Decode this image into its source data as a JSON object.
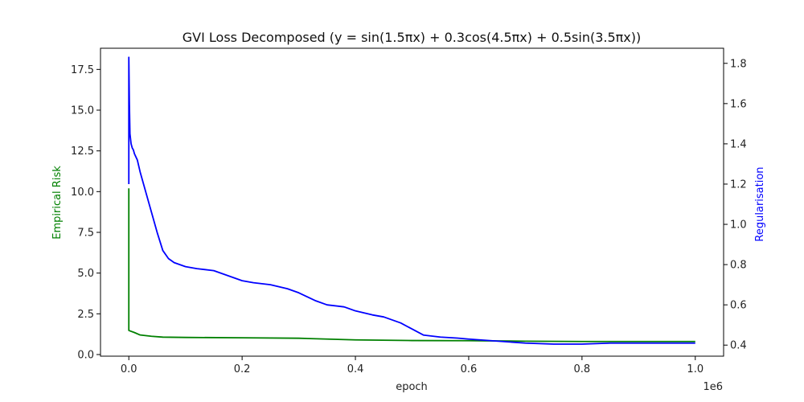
{
  "chart_data": {
    "type": "line",
    "title": "GVI Loss Decomposed ($y=\\sin(1.5\\pi x) + 0.3\\cos(4.5\\pi x) + 0.5\\sin(3.5\\pi x)$)",
    "title_display": "GVI Loss Decomposed (y = sin(1.5πx) + 0.3cos(4.5πx) + 0.5sin(3.5πx))",
    "xlabel": "epoch",
    "x_scale_label": "1e6",
    "xlim": [
      -0.05,
      1.05
    ],
    "x_ticks": [
      0.0,
      0.2,
      0.4,
      0.6,
      0.8,
      1.0
    ],
    "x_tick_labels": [
      "0.0",
      "0.2",
      "0.4",
      "0.6",
      "0.8",
      "1.0"
    ],
    "y_left": {
      "label": "Empirical Risk",
      "color": "#008000",
      "lim": [
        -0.1,
        18.8
      ],
      "ticks": [
        0.0,
        2.5,
        5.0,
        7.5,
        10.0,
        12.5,
        15.0,
        17.5
      ],
      "tick_labels": [
        "0.0",
        "2.5",
        "5.0",
        "7.5",
        "10.0",
        "12.5",
        "15.0",
        "17.5"
      ]
    },
    "y_right": {
      "label": "Regularisation",
      "color": "#0000ff",
      "lim": [
        0.345,
        1.875
      ],
      "ticks": [
        0.4,
        0.6,
        0.8,
        1.0,
        1.2,
        1.4,
        1.6,
        1.8
      ],
      "tick_labels": [
        "0.4",
        "0.6",
        "0.8",
        "1.0",
        "1.2",
        "1.4",
        "1.6",
        "1.8"
      ]
    },
    "grid": false,
    "series": [
      {
        "name": "Empirical Risk",
        "axis": "left",
        "color": "#008000",
        "x": [
          0.0,
          0.0,
          0.002,
          0.01,
          0.02,
          0.04,
          0.06,
          0.1,
          0.2,
          0.3,
          0.4,
          0.5,
          0.6,
          0.7,
          0.8,
          0.9,
          1.0
        ],
        "y": [
          10.2,
          1.48,
          1.45,
          1.35,
          1.2,
          1.12,
          1.07,
          1.05,
          1.03,
          1.0,
          0.9,
          0.86,
          0.85,
          0.82,
          0.8,
          0.8,
          0.8
        ]
      },
      {
        "name": "Regularisation",
        "axis": "right",
        "color": "#0000ff",
        "x": [
          0.0,
          0.0,
          0.001,
          0.002,
          0.004,
          0.006,
          0.008,
          0.01,
          0.015,
          0.02,
          0.03,
          0.04,
          0.05,
          0.06,
          0.07,
          0.08,
          0.1,
          0.12,
          0.15,
          0.18,
          0.2,
          0.22,
          0.25,
          0.28,
          0.3,
          0.33,
          0.35,
          0.38,
          0.4,
          0.43,
          0.45,
          0.48,
          0.5,
          0.52,
          0.55,
          0.58,
          0.6,
          0.65,
          0.7,
          0.75,
          0.8,
          0.85,
          0.9,
          0.95,
          1.0
        ],
        "y": [
          1.2,
          1.83,
          1.6,
          1.45,
          1.4,
          1.38,
          1.37,
          1.35,
          1.32,
          1.26,
          1.16,
          1.06,
          0.96,
          0.87,
          0.83,
          0.81,
          0.79,
          0.78,
          0.77,
          0.74,
          0.72,
          0.71,
          0.7,
          0.68,
          0.66,
          0.62,
          0.6,
          0.59,
          0.57,
          0.55,
          0.54,
          0.51,
          0.48,
          0.45,
          0.44,
          0.435,
          0.43,
          0.42,
          0.41,
          0.405,
          0.405,
          0.41,
          0.41,
          0.41,
          0.41
        ]
      }
    ]
  }
}
